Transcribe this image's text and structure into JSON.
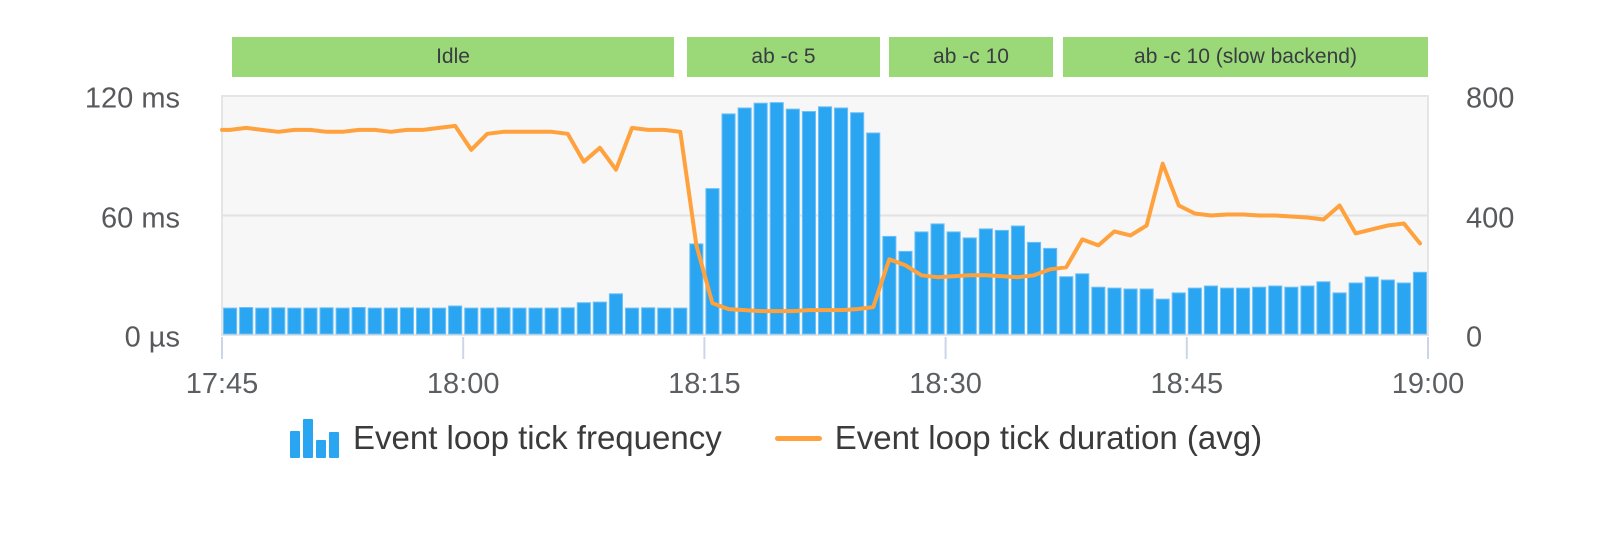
{
  "chart_data": {
    "type": "bar",
    "title": "",
    "description": "Node.js event loop monitoring: tick frequency bars with average tick duration line, annotated with load phases",
    "x": {
      "start_label": "17:45",
      "end_label": "19:00",
      "tick_labels": [
        "17:45",
        "18:00",
        "18:15",
        "18:30",
        "18:45",
        "19:00"
      ],
      "tick_minutes": [
        0,
        15,
        30,
        45,
        60,
        75
      ],
      "total_minutes": 75,
      "bar_interval_minutes": 1
    },
    "left_axis": {
      "title": "tick duration",
      "tick_labels": [
        "0 µs",
        "60 ms",
        "120 ms"
      ],
      "tick_values_ms": [
        0,
        60,
        120
      ],
      "min": 0,
      "max": 120
    },
    "right_axis": {
      "title": "tick frequency",
      "tick_labels": [
        "0",
        "400",
        "800"
      ],
      "tick_values": [
        0,
        400,
        800
      ],
      "min": 0,
      "max": 800
    },
    "grid": "single horizontal gridline at mid (60 ms / 400)",
    "legend_position": "bottom",
    "series": [
      {
        "name": "Event loop tick frequency",
        "type": "bar",
        "axis": "right",
        "color": "#2aa5f1",
        "icon": "bar-series-icon",
        "values": [
          90,
          92,
          90,
          91,
          90,
          90,
          91,
          90,
          92,
          90,
          90,
          91,
          90,
          90,
          97,
          90,
          90,
          91,
          90,
          90,
          90,
          91,
          108,
          110,
          138,
          90,
          91,
          90,
          90,
          305,
          490,
          740,
          760,
          776,
          778,
          756,
          748,
          764,
          760,
          744,
          676,
          330,
          280,
          345,
          372,
          345,
          325,
          355,
          350,
          365,
          310,
          290,
          195,
          205,
          160,
          157,
          154,
          154,
          120,
          141,
          157,
          164,
          157,
          157,
          160,
          164,
          160,
          164,
          178,
          141,
          174,
          194,
          184,
          174,
          210
        ]
      },
      {
        "name": "Event loop tick duration (avg)",
        "type": "line",
        "axis": "left",
        "unit": "ms",
        "color": "#ffa13c",
        "icon": "line-series-icon",
        "values": [
          103,
          104,
          103,
          102,
          103,
          103,
          102,
          102,
          103,
          103,
          102,
          103,
          103,
          104,
          105,
          93,
          101,
          102,
          102,
          102,
          102,
          101,
          87,
          94,
          83,
          104,
          103,
          103,
          102,
          45,
          16,
          13,
          12.5,
          12,
          12,
          12,
          12.5,
          12.5,
          12.5,
          13,
          14,
          38,
          35,
          30,
          29,
          29.5,
          30,
          30,
          29.5,
          29,
          30,
          33,
          34,
          48,
          45,
          52,
          50,
          55,
          86,
          65,
          61,
          60,
          60.5,
          60.5,
          60,
          60,
          59.5,
          59,
          58,
          65,
          51,
          53,
          55,
          56,
          46
        ]
      }
    ],
    "annotations": [
      {
        "label": "Idle",
        "start_min": 0.6,
        "end_min": 28.1
      },
      {
        "label": "ab -c 5",
        "start_min": 28.9,
        "end_min": 40.9
      },
      {
        "label": "ab -c 10",
        "start_min": 41.5,
        "end_min": 51.7
      },
      {
        "label": "ab -c 10 (slow backend)",
        "start_min": 52.3,
        "end_min": 75.0
      }
    ],
    "annotation_color": "#9bd877"
  },
  "colors": {
    "bar_fill": "#2aa5f1",
    "bar_edge": "#6ec0f5",
    "line": "#ffa13c",
    "annotation_bg": "#9bd877",
    "plot_bg": "#f7f7f7",
    "plot_border": "#e5e5e5",
    "gridline": "#e2e2e2",
    "x_tick_mark": "#ccd6e8",
    "axis_text": "#58595c",
    "legend_text": "#3b3b3b"
  }
}
